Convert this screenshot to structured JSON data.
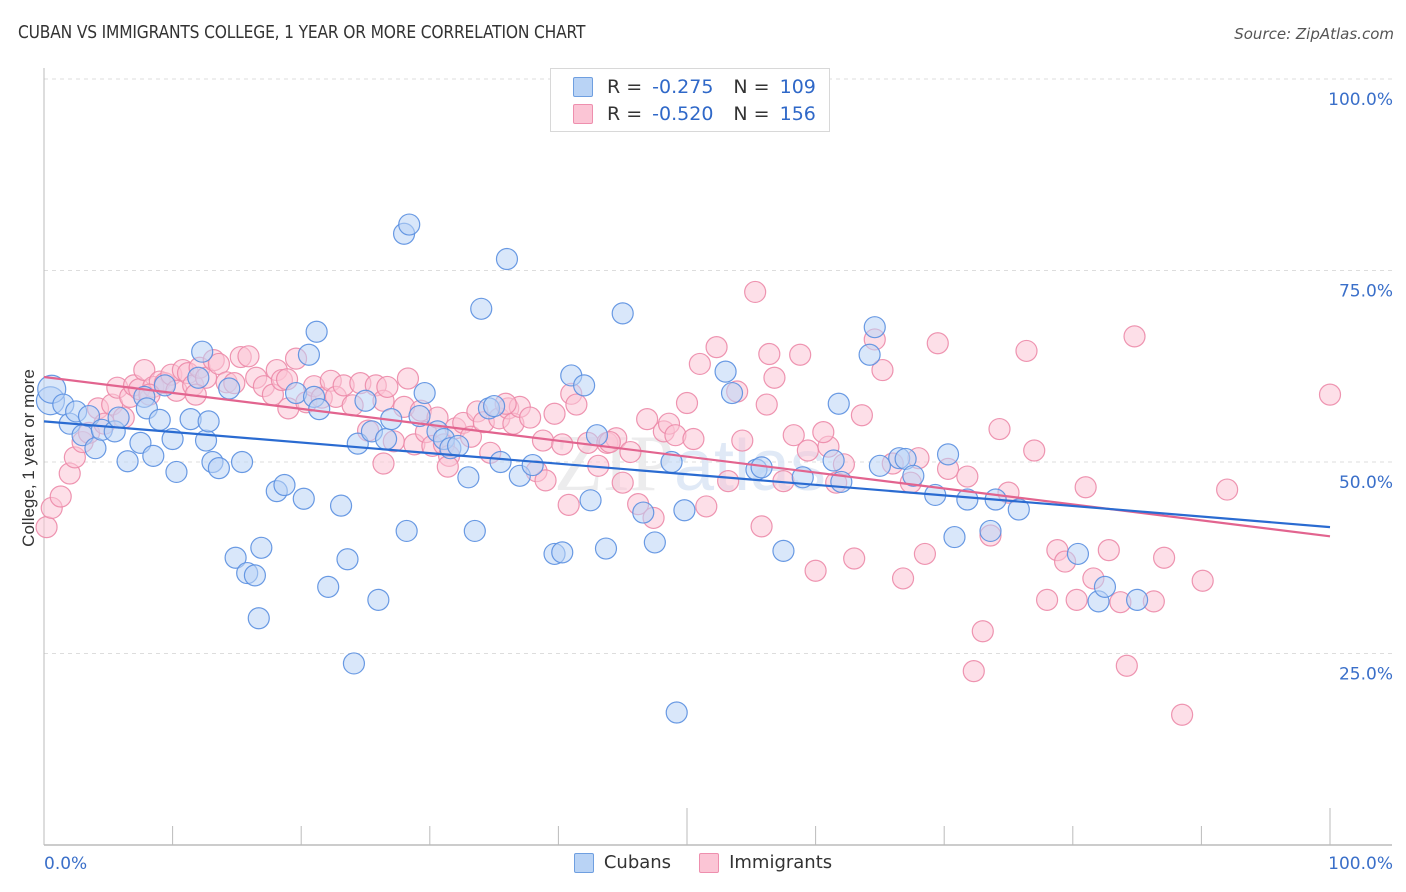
{
  "header": {
    "title": "CUBAN VS IMMIGRANTS COLLEGE, 1 YEAR OR MORE CORRELATION CHART",
    "source": "Source: ZipAtlas.com"
  },
  "legend": {
    "rows": [
      {
        "series": "Cubans",
        "r_label": "R =",
        "r_value": "-0.275",
        "n_label": "N =",
        "n_value": "109"
      },
      {
        "series": "Immigrants",
        "r_label": "R =",
        "r_value": "-0.520",
        "n_label": "N =",
        "n_value": "156"
      }
    ]
  },
  "colors": {
    "cubans_fill": "#b9d3f5",
    "cubans_stroke": "#5a8fe0",
    "cubans_line": "#2a6bd1",
    "immigrants_fill": "#fbc5d5",
    "immigrants_stroke": "#ec8aa9",
    "immigrants_line": "#e2648f",
    "tick_label": "#3a6fc9",
    "grid": "#dddddd"
  },
  "chart_data": {
    "type": "scatter",
    "title": "CUBAN VS IMMIGRANTS COLLEGE, 1 YEAR OR MORE CORRELATION CHART",
    "xlabel": "",
    "ylabel": "College, 1 year or more",
    "xlim": [
      0,
      100
    ],
    "ylim": [
      0,
      100
    ],
    "x_tick_labels": [
      "0.0%",
      "100.0%"
    ],
    "y_ticks": [
      25,
      50,
      75,
      100
    ],
    "y_tick_labels": [
      "25.0%",
      "50.0%",
      "75.0%",
      "100.0%"
    ],
    "grid": "horizontal-dashed",
    "legend_position": "top-center",
    "watermark": "ZIPatlas",
    "series": [
      {
        "name": "Cubans",
        "r": -0.275,
        "n": 109,
        "trend": {
          "x": [
            0,
            100
          ],
          "y": [
            55.3,
            41.5
          ]
        },
        "points": [
          [
            0.5,
            58
          ],
          [
            0.6,
            59.5
          ],
          [
            1.5,
            57.5
          ],
          [
            2,
            55
          ],
          [
            2.5,
            56.6
          ],
          [
            3,
            53.5
          ],
          [
            3.5,
            56
          ],
          [
            4,
            51.8
          ],
          [
            4.5,
            54.2
          ],
          [
            5.5,
            54
          ],
          [
            5.8,
            55.8
          ],
          [
            6.5,
            50.1
          ],
          [
            7.5,
            52.5
          ],
          [
            7.8,
            58.5
          ],
          [
            8,
            57
          ],
          [
            8.5,
            50.8
          ],
          [
            9,
            55.5
          ],
          [
            9.4,
            60
          ],
          [
            10,
            53
          ],
          [
            10.3,
            48.7
          ],
          [
            11.4,
            55.6
          ],
          [
            12,
            61
          ],
          [
            12.3,
            64.4
          ],
          [
            12.6,
            52.8
          ],
          [
            12.8,
            55.3
          ],
          [
            13.1,
            50
          ],
          [
            13.6,
            49.2
          ],
          [
            14.4,
            59.6
          ],
          [
            14.9,
            37.5
          ],
          [
            15.4,
            50
          ],
          [
            15.8,
            35.5
          ],
          [
            16.4,
            35.2
          ],
          [
            16.7,
            29.6
          ],
          [
            16.9,
            38.8
          ],
          [
            18.1,
            46.2
          ],
          [
            18.7,
            47
          ],
          [
            19.6,
            59
          ],
          [
            20.2,
            45.2
          ],
          [
            20.6,
            64
          ],
          [
            21,
            58.5
          ],
          [
            21.2,
            67
          ],
          [
            21.4,
            56.9
          ],
          [
            22.1,
            33.7
          ],
          [
            23.1,
            44.3
          ],
          [
            23.6,
            37.3
          ],
          [
            24.1,
            23.7
          ],
          [
            24.4,
            52.4
          ],
          [
            25,
            58
          ],
          [
            25.5,
            54
          ],
          [
            26,
            32
          ],
          [
            26.6,
            53
          ],
          [
            27,
            55.6
          ],
          [
            28,
            79.8
          ],
          [
            28.2,
            41
          ],
          [
            28.4,
            81
          ],
          [
            29.2,
            56
          ],
          [
            29.6,
            59
          ],
          [
            30.6,
            54
          ],
          [
            31.1,
            53
          ],
          [
            31.6,
            51.8
          ],
          [
            32.2,
            52.1
          ],
          [
            33,
            48
          ],
          [
            33.5,
            41
          ],
          [
            34,
            70
          ],
          [
            34.6,
            57
          ],
          [
            35,
            57.3
          ],
          [
            35.5,
            50
          ],
          [
            36,
            76.5
          ],
          [
            37,
            48.2
          ],
          [
            38,
            49.6
          ],
          [
            39.7,
            38
          ],
          [
            40.3,
            38.2
          ],
          [
            41,
            61.3
          ],
          [
            42,
            60
          ],
          [
            42.5,
            45
          ],
          [
            43,
            53.5
          ],
          [
            43.7,
            38.7
          ],
          [
            45,
            69.4
          ],
          [
            46.6,
            43.4
          ],
          [
            47.5,
            39.5
          ],
          [
            48.8,
            50
          ],
          [
            49.2,
            17.3
          ],
          [
            49.8,
            43.7
          ],
          [
            53,
            61.8
          ],
          [
            53.5,
            59
          ],
          [
            55.4,
            49
          ],
          [
            55.8,
            49.3
          ],
          [
            57.5,
            38.4
          ],
          [
            59,
            48
          ],
          [
            61.4,
            50.2
          ],
          [
            61.8,
            57.6
          ],
          [
            62,
            47.4
          ],
          [
            64.2,
            64
          ],
          [
            64.6,
            67.6
          ],
          [
            65,
            49.5
          ],
          [
            66.5,
            50.5
          ],
          [
            67,
            50.4
          ],
          [
            67.6,
            48.2
          ],
          [
            69.3,
            45.7
          ],
          [
            70.3,
            51
          ],
          [
            70.8,
            40.2
          ],
          [
            71.8,
            45.1
          ],
          [
            73.6,
            41
          ],
          [
            74,
            45.1
          ],
          [
            75.8,
            43.8
          ],
          [
            80.4,
            38
          ],
          [
            82,
            31.8
          ],
          [
            82.5,
            33.7
          ],
          [
            85,
            32
          ]
        ]
      },
      {
        "name": "Immigrants",
        "r": -0.52,
        "n": 156,
        "trend": {
          "x": [
            0,
            100
          ],
          "y": [
            61.1,
            40.3
          ]
        },
        "points": [
          [
            0.2,
            41.5
          ],
          [
            0.6,
            44
          ],
          [
            1.3,
            45.5
          ],
          [
            2,
            48.5
          ],
          [
            2.4,
            50.6
          ],
          [
            3,
            52.6
          ],
          [
            3.5,
            53.8
          ],
          [
            4.2,
            57
          ],
          [
            4.7,
            55
          ],
          [
            5.3,
            57.5
          ],
          [
            5.7,
            59.7
          ],
          [
            6.2,
            55.8
          ],
          [
            6.7,
            58.5
          ],
          [
            7,
            60
          ],
          [
            7.4,
            59.5
          ],
          [
            7.8,
            62
          ],
          [
            8.5,
            59.8
          ],
          [
            9,
            60.5
          ],
          [
            9.4,
            60.3
          ],
          [
            9.9,
            61.4
          ],
          [
            10.3,
            59.3
          ],
          [
            10.8,
            62
          ],
          [
            11.2,
            61.6
          ],
          [
            11.6,
            60
          ],
          [
            12.1,
            62.3
          ],
          [
            12.6,
            61
          ],
          [
            13.2,
            63.3
          ],
          [
            13.6,
            62.8
          ],
          [
            14.2,
            60.4
          ],
          [
            14.8,
            60.3
          ],
          [
            15.3,
            63.7
          ],
          [
            15.9,
            63.8
          ],
          [
            16.5,
            61
          ],
          [
            17.1,
            59.9
          ],
          [
            17.8,
            58.8
          ],
          [
            18.1,
            62
          ],
          [
            18.5,
            60.7
          ],
          [
            19,
            57
          ],
          [
            19.6,
            63.5
          ],
          [
            20.4,
            57.8
          ],
          [
            21,
            59.9
          ],
          [
            21.6,
            58.4
          ],
          [
            22.3,
            60.6
          ],
          [
            22.7,
            58.5
          ],
          [
            23.3,
            60
          ],
          [
            24,
            57.4
          ],
          [
            24.6,
            60.3
          ],
          [
            25.2,
            54.1
          ],
          [
            25.8,
            60
          ],
          [
            26.4,
            58
          ],
          [
            26.7,
            59.8
          ],
          [
            27.2,
            52.7
          ],
          [
            28,
            57.2
          ],
          [
            28.3,
            60.9
          ],
          [
            28.8,
            52.3
          ],
          [
            29.3,
            56.7
          ],
          [
            29.7,
            53.9
          ],
          [
            30.2,
            52.1
          ],
          [
            30.6,
            55.8
          ],
          [
            31.1,
            52.3
          ],
          [
            31.5,
            50.8
          ],
          [
            32,
            54.4
          ],
          [
            32.6,
            55.1
          ],
          [
            33.2,
            53.3
          ],
          [
            33.7,
            56.6
          ],
          [
            34.2,
            55.2
          ],
          [
            34.7,
            51.2
          ],
          [
            35.4,
            55.7
          ],
          [
            36.1,
            57
          ],
          [
            36.5,
            55
          ],
          [
            37,
            57.2
          ],
          [
            37.8,
            55.8
          ],
          [
            38.3,
            48.8
          ],
          [
            38.8,
            52.8
          ],
          [
            39,
            47.6
          ],
          [
            39.7,
            56.3
          ],
          [
            40.3,
            52.3
          ],
          [
            40.8,
            44.4
          ],
          [
            41,
            58.9
          ],
          [
            41.4,
            57.5
          ],
          [
            42.3,
            52.5
          ],
          [
            43.1,
            49.5
          ],
          [
            43.8,
            52.5
          ],
          [
            44.5,
            53.1
          ],
          [
            45,
            47.3
          ],
          [
            45.6,
            51.3
          ],
          [
            46.2,
            44.5
          ],
          [
            46.9,
            55.6
          ],
          [
            47.4,
            42.7
          ],
          [
            48.2,
            54
          ],
          [
            48.6,
            55
          ],
          [
            49.1,
            53.5
          ],
          [
            50,
            57.7
          ],
          [
            50.5,
            53
          ],
          [
            51,
            62.8
          ],
          [
            51.5,
            44.2
          ],
          [
            52.3,
            65
          ],
          [
            53.2,
            47.5
          ],
          [
            53.9,
            59.2
          ],
          [
            54.3,
            52.8
          ],
          [
            55.3,
            72.2
          ],
          [
            55.8,
            41.6
          ],
          [
            56.2,
            57.5
          ],
          [
            56.8,
            61
          ],
          [
            57.5,
            47.5
          ],
          [
            58.3,
            53.5
          ],
          [
            58.8,
            64
          ],
          [
            59.4,
            51.5
          ],
          [
            60,
            35.8
          ],
          [
            61,
            52
          ],
          [
            61.6,
            47.3
          ],
          [
            62.2,
            49.7
          ],
          [
            63,
            37.4
          ],
          [
            63.6,
            56.1
          ],
          [
            64.6,
            66
          ],
          [
            65.2,
            62
          ],
          [
            66,
            49.8
          ],
          [
            66.8,
            34.8
          ],
          [
            67.4,
            47.3
          ],
          [
            68,
            50.5
          ],
          [
            68.5,
            38
          ],
          [
            69.5,
            65.5
          ],
          [
            70.3,
            49.1
          ],
          [
            71.8,
            48.1
          ],
          [
            72.3,
            22.7
          ],
          [
            73,
            27.9
          ],
          [
            73.6,
            40.4
          ],
          [
            74.3,
            54.3
          ],
          [
            75,
            46
          ],
          [
            76.4,
            64.5
          ],
          [
            77,
            51.5
          ],
          [
            78,
            32
          ],
          [
            78.8,
            38.5
          ],
          [
            79.4,
            37
          ],
          [
            80.3,
            32
          ],
          [
            81,
            46.7
          ],
          [
            81.6,
            34.8
          ],
          [
            82.8,
            38.5
          ],
          [
            83.7,
            31.7
          ],
          [
            84.2,
            23.4
          ],
          [
            84.8,
            66.4
          ],
          [
            86.3,
            31.8
          ],
          [
            87.1,
            37.5
          ],
          [
            88.5,
            17
          ],
          [
            90.1,
            34.5
          ],
          [
            92,
            46.4
          ],
          [
            100,
            58.8
          ],
          [
            56.4,
            64.1
          ],
          [
            31.4,
            49.4
          ],
          [
            44,
            52.6
          ],
          [
            26.4,
            49.8
          ],
          [
            18.9,
            60.8
          ],
          [
            11.8,
            58.8
          ],
          [
            8.2,
            58.8
          ],
          [
            35.9,
            57.6
          ],
          [
            60.6,
            53.9
          ]
        ]
      }
    ]
  }
}
